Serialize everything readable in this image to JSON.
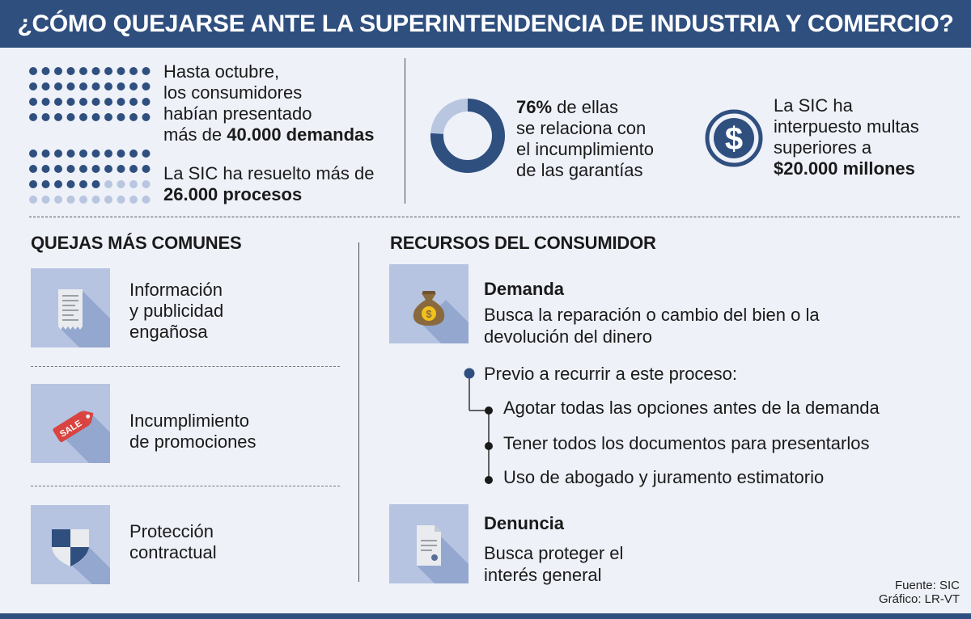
{
  "header": {
    "title": "¿CÓMO QUEJARSE ANTE LA SUPERINTENDENCIA DE INDUSTRIA Y COMERCIO?"
  },
  "stats": {
    "demands": {
      "lines": [
        "Hasta octubre,",
        "los consumidores",
        "habían presentado"
      ],
      "prefix": "más de ",
      "highlight": "40.000 demandas"
    },
    "resolved": {
      "line1": "La SIC ha resuelto más de",
      "highlight": "26.000 procesos",
      "fraction": 0.65
    },
    "warranty": {
      "percent_label": "76%",
      "rest": " de ellas",
      "lines": [
        "se relaciona con",
        "el incumplimiento",
        "de las garantías"
      ],
      "fraction": 0.76
    },
    "fines": {
      "lines": [
        "La SIC ha",
        "interpuesto multas",
        "superiores a"
      ],
      "highlight": "$20.000 millones"
    }
  },
  "complaints": {
    "heading": "QUEJAS MÁS COMUNES",
    "items": [
      {
        "lines": [
          "Información",
          "y publicidad",
          "engañosa"
        ]
      },
      {
        "lines": [
          "Incumplimiento",
          "de promociones"
        ],
        "tag_text": "SALE"
      },
      {
        "lines": [
          "Protección",
          "contractual"
        ]
      }
    ]
  },
  "resources": {
    "heading": "RECURSOS DEL CONSUMIDOR",
    "demanda": {
      "title": "Demanda",
      "desc": [
        "Busca la reparación o cambio del bien o la",
        "devolución del dinero"
      ]
    },
    "previo": "Previo a recurrir a este proceso:",
    "steps": [
      "Agotar todas las opciones antes de la demanda",
      "Tener todos los documentos para presentarlos",
      "Uso de abogado y juramento estimatorio"
    ],
    "denuncia": {
      "title": "Denuncia",
      "desc": [
        "Busca proteger el",
        "interés general"
      ]
    }
  },
  "footer": {
    "source": "Fuente: SIC",
    "credit": "Gráfico: LR-VT"
  },
  "colors": {
    "banner": "#2f4f7f",
    "dark_blue": "#2f4f7f",
    "light_blue": "#b8c6e0",
    "background": "#eef1f8"
  }
}
